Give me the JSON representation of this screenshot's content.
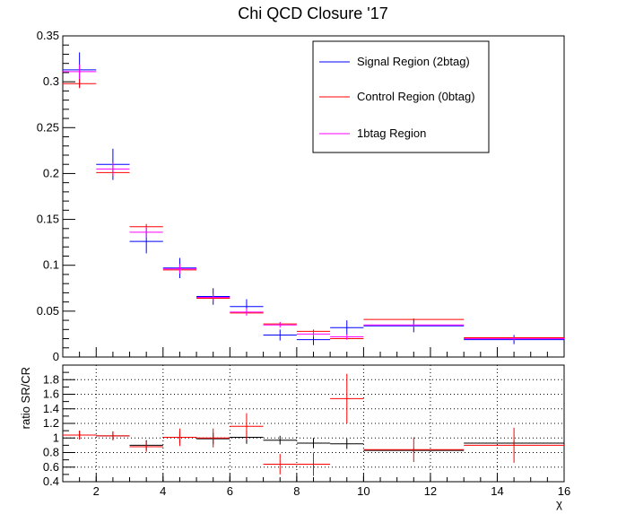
{
  "chart_data": [
    {
      "type": "histogram",
      "title": "Chi QCD Closure '17",
      "xlim": [
        1,
        16
      ],
      "ylim": [
        0,
        0.35
      ],
      "y_ticks": [
        0,
        0.05,
        0.1,
        0.15,
        0.2,
        0.25,
        0.3,
        0.35
      ],
      "y_tick_labels": [
        "0",
        "0.05",
        "0.1",
        "0.15",
        "0.2",
        "0.25",
        "0.3",
        "0.35"
      ],
      "legend_position": "top-right",
      "series": [
        {
          "name": "Signal Region (2btag)",
          "color": "#0000ff",
          "points": [
            {
              "x0": 1,
              "x1": 2,
              "y": 0.313,
              "err": 0.019
            },
            {
              "x0": 2,
              "x1": 3,
              "y": 0.21,
              "err": 0.017
            },
            {
              "x0": 3,
              "x1": 4,
              "y": 0.126,
              "err": 0.013
            },
            {
              "x0": 4,
              "x1": 5,
              "y": 0.097,
              "err": 0.011
            },
            {
              "x0": 5,
              "x1": 6,
              "y": 0.066,
              "err": 0.009
            },
            {
              "x0": 6,
              "x1": 7,
              "y": 0.055,
              "err": 0.008
            },
            {
              "x0": 7,
              "x1": 8,
              "y": 0.024,
              "err": 0.006
            },
            {
              "x0": 8,
              "x1": 9,
              "y": 0.019,
              "err": 0.006
            },
            {
              "x0": 9,
              "x1": 10,
              "y": 0.032,
              "err": 0.008
            },
            {
              "x0": 10,
              "x1": 13,
              "y": 0.034,
              "err": 0.007
            },
            {
              "x0": 13,
              "x1": 16,
              "y": 0.019,
              "err": 0.005
            }
          ]
        },
        {
          "name": "Control Region (0btag)",
          "color": "#ff0000",
          "points": [
            {
              "x0": 1,
              "x1": 2,
              "y": 0.298,
              "err": 0.005
            },
            {
              "x0": 2,
              "x1": 3,
              "y": 0.201,
              "err": 0.004
            },
            {
              "x0": 3,
              "x1": 4,
              "y": 0.142,
              "err": 0.003
            },
            {
              "x0": 4,
              "x1": 5,
              "y": 0.095,
              "err": 0.003
            },
            {
              "x0": 5,
              "x1": 6,
              "y": 0.064,
              "err": 0.002
            },
            {
              "x0": 6,
              "x1": 7,
              "y": 0.048,
              "err": 0.002
            },
            {
              "x0": 7,
              "x1": 8,
              "y": 0.036,
              "err": 0.002
            },
            {
              "x0": 8,
              "x1": 9,
              "y": 0.028,
              "err": 0.002
            },
            {
              "x0": 9,
              "x1": 10,
              "y": 0.02,
              "err": 0.001
            },
            {
              "x0": 10,
              "x1": 13,
              "y": 0.041,
              "err": 0.001
            },
            {
              "x0": 13,
              "x1": 16,
              "y": 0.021,
              "err": 0.001
            }
          ]
        },
        {
          "name": "1btag Region",
          "color": "#ff00ff",
          "points": [
            {
              "x0": 1,
              "x1": 2,
              "y": 0.311,
              "err": 0.008
            },
            {
              "x0": 2,
              "x1": 3,
              "y": 0.205,
              "err": 0.007
            },
            {
              "x0": 3,
              "x1": 4,
              "y": 0.136,
              "err": 0.006
            },
            {
              "x0": 4,
              "x1": 5,
              "y": 0.096,
              "err": 0.005
            },
            {
              "x0": 5,
              "x1": 6,
              "y": 0.065,
              "err": 0.004
            },
            {
              "x0": 6,
              "x1": 7,
              "y": 0.049,
              "err": 0.004
            },
            {
              "x0": 7,
              "x1": 8,
              "y": 0.035,
              "err": 0.003
            },
            {
              "x0": 8,
              "x1": 9,
              "y": 0.025,
              "err": 0.003
            },
            {
              "x0": 9,
              "x1": 10,
              "y": 0.022,
              "err": 0.003
            },
            {
              "x0": 10,
              "x1": 13,
              "y": 0.035,
              "err": 0.003
            },
            {
              "x0": 13,
              "x1": 16,
              "y": 0.02,
              "err": 0.002
            }
          ]
        }
      ]
    },
    {
      "type": "histogram",
      "ylabel": "ratio SR/CR",
      "xlabel": "χ",
      "xlim": [
        1,
        16
      ],
      "ylim": [
        0.4,
        2.0
      ],
      "x_ticks": [
        2,
        4,
        6,
        8,
        10,
        12,
        14,
        16
      ],
      "x_tick_labels": [
        "2",
        "4",
        "6",
        "8",
        "10",
        "12",
        "14",
        "16"
      ],
      "y_ticks": [
        0.4,
        0.6,
        0.8,
        1,
        1.2,
        1.4,
        1.6,
        1.8
      ],
      "y_tick_labels": [
        "0.4",
        "0.6",
        "0.8",
        "1",
        "1.2",
        "1.4",
        "1.6",
        "1.8"
      ],
      "grid": true,
      "series": [
        {
          "color": "#000000",
          "points": [
            {
              "x0": 1,
              "x1": 2,
              "y": 1.04,
              "err": 0.06
            },
            {
              "x0": 2,
              "x1": 3,
              "y": 1.03,
              "err": 0.06
            },
            {
              "x0": 3,
              "x1": 4,
              "y": 0.9,
              "err": 0.07
            },
            {
              "x0": 4,
              "x1": 5,
              "y": 1.01,
              "err": 0.08
            },
            {
              "x0": 5,
              "x1": 6,
              "y": 0.99,
              "err": 0.08
            },
            {
              "x0": 6,
              "x1": 7,
              "y": 1.01,
              "err": 0.09
            },
            {
              "x0": 7,
              "x1": 8,
              "y": 0.97,
              "err": 0.06
            },
            {
              "x0": 8,
              "x1": 9,
              "y": 0.93,
              "err": 0.07
            },
            {
              "x0": 9,
              "x1": 10,
              "y": 0.92,
              "err": 0.07
            },
            {
              "x0": 10,
              "x1": 13,
              "y": 0.83,
              "err": 0.02
            },
            {
              "x0": 13,
              "x1": 16,
              "y": 0.93,
              "err": 0.03
            }
          ]
        },
        {
          "color": "#ff0000",
          "points": [
            {
              "x0": 1,
              "x1": 2,
              "y": 1.04,
              "err": 0.06
            },
            {
              "x0": 2,
              "x1": 3,
              "y": 1.03,
              "err": 0.06
            },
            {
              "x0": 3,
              "x1": 4,
              "y": 0.88,
              "err": 0.07
            },
            {
              "x0": 4,
              "x1": 5,
              "y": 1.01,
              "err": 0.12
            },
            {
              "x0": 5,
              "x1": 6,
              "y": 1.0,
              "err": 0.13
            },
            {
              "x0": 6,
              "x1": 7,
              "y": 1.16,
              "err": 0.18
            },
            {
              "x0": 7,
              "x1": 8,
              "y": 0.64,
              "err": 0.14
            },
            {
              "x0": 8,
              "x1": 9,
              "y": 0.64,
              "err": 0.16
            },
            {
              "x0": 9,
              "x1": 10,
              "y": 1.54,
              "err": 0.34
            },
            {
              "x0": 10,
              "x1": 13,
              "y": 0.84,
              "err": 0.17
            },
            {
              "x0": 13,
              "x1": 16,
              "y": 0.9,
              "err": 0.24
            }
          ]
        }
      ]
    }
  ]
}
